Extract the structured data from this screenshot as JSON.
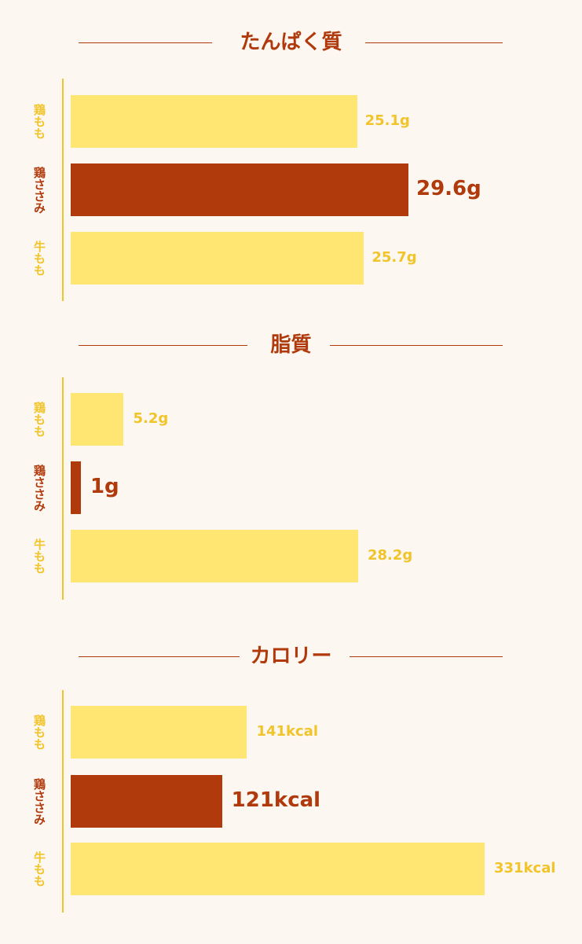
{
  "colors": {
    "background": "#fcf7f0",
    "accent": "#b03a0c",
    "highlight_bar": "#b03a0c",
    "normal_bar": "#ffe673",
    "normal_text": "#f1c42a",
    "axis": "#f1c42a"
  },
  "chart_data": [
    {
      "type": "bar",
      "orientation": "horizontal",
      "title": "たんぱく質",
      "categories": [
        "鶏もも",
        "鶏ささみ",
        "牛もも"
      ],
      "values": [
        25.1,
        29.6,
        25.7
      ],
      "value_labels": [
        "25.1g",
        "29.6g",
        "25.7g"
      ],
      "unit": "g",
      "highlight_index": 1
    },
    {
      "type": "bar",
      "orientation": "horizontal",
      "title": "脂質",
      "categories": [
        "鶏もも",
        "鶏ささみ",
        "牛もも"
      ],
      "values": [
        5.2,
        1,
        28.2
      ],
      "value_labels": [
        "5.2g",
        "1g",
        "28.2g"
      ],
      "unit": "g",
      "highlight_index": 1
    },
    {
      "type": "bar",
      "orientation": "horizontal",
      "title": "カロリー",
      "categories": [
        "鶏もも",
        "鶏ささみ",
        "牛もも"
      ],
      "values": [
        141,
        121,
        331
      ],
      "value_labels": [
        "141kcal",
        "121kcal",
        "331kcal"
      ],
      "unit": "kcal",
      "highlight_index": 1
    }
  ]
}
